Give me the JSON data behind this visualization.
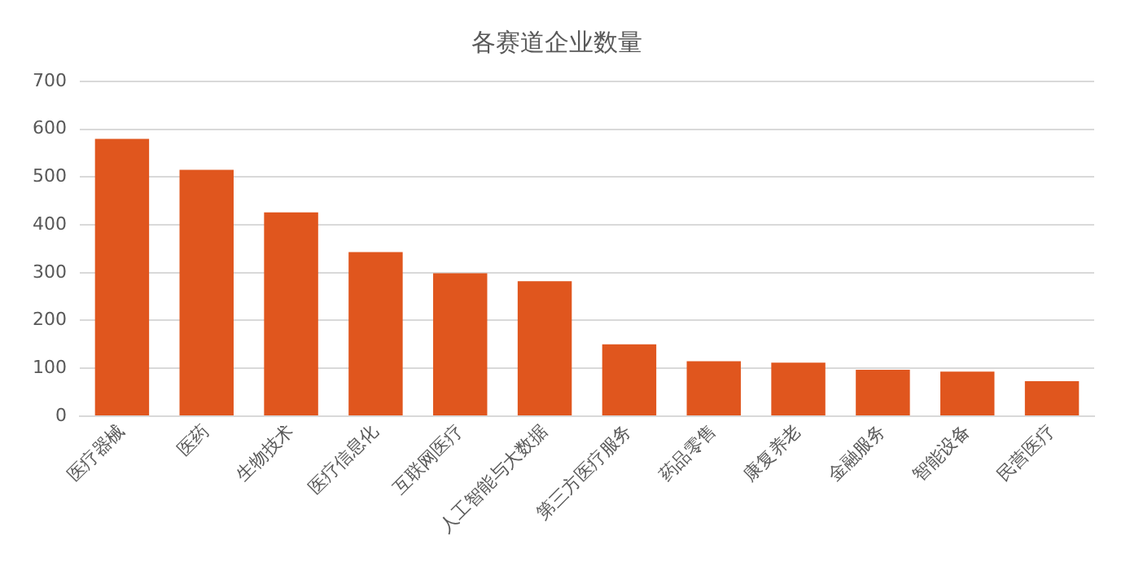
{
  "chart_data": {
    "type": "bar",
    "title": "各赛道企业数量",
    "categories": [
      "医疗器械",
      "医药",
      "生物技术",
      "医疗信息化",
      "互联网医疗",
      "人工智能与大数据",
      "第三方医疗服务",
      "药品零售",
      "康复养老",
      "金融服务",
      "智能设备",
      "民营医疗"
    ],
    "values": [
      580,
      515,
      426,
      343,
      299,
      282,
      150,
      115,
      112,
      97,
      93,
      73
    ],
    "color": "#e0561e",
    "ylim": [
      0,
      700
    ],
    "yticks": [
      0,
      100,
      200,
      300,
      400,
      500,
      600,
      700
    ],
    "grid": "y",
    "legend": false
  }
}
